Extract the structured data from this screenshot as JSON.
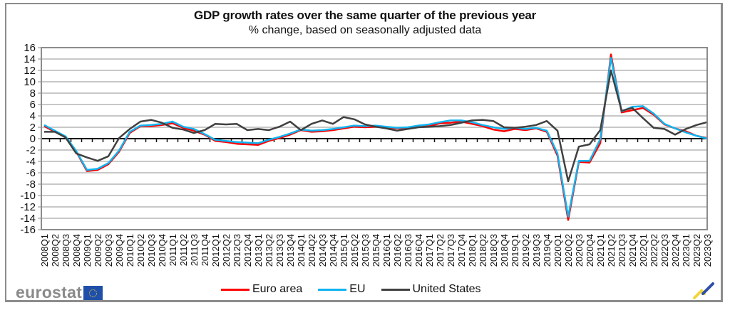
{
  "chart_data": {
    "type": "line",
    "title": "GDP growth rates over the same quarter of the previous year",
    "subtitle": "% change, based on seasonally adjusted data",
    "xlabel": "",
    "ylabel": "",
    "ylim": [
      -16,
      16
    ],
    "yticks": [
      16,
      14,
      12,
      10,
      8,
      6,
      4,
      2,
      0,
      -2,
      -4,
      -6,
      -8,
      -10,
      -12,
      -14,
      -16
    ],
    "grid": true,
    "legend_position": "bottom",
    "x": [
      "2008Q1",
      "2008Q2",
      "2008Q3",
      "2008Q4",
      "2009Q1",
      "2009Q2",
      "2009Q3",
      "2009Q4",
      "2010Q1",
      "2010Q2",
      "2010Q3",
      "2010Q4",
      "2011Q1",
      "2011Q2",
      "2011Q3",
      "2011Q4",
      "2012Q1",
      "2012Q2",
      "2012Q3",
      "2012Q4",
      "2013Q1",
      "2013Q2",
      "2013Q3",
      "2013Q4",
      "2014Q1",
      "2014Q2",
      "2014Q3",
      "2014Q4",
      "2015Q1",
      "2015Q2",
      "2015Q3",
      "2015Q4",
      "2016Q1",
      "2016Q2",
      "2016Q3",
      "2016Q4",
      "2017Q1",
      "2017Q2",
      "2017Q3",
      "2017Q4",
      "2018Q1",
      "2018Q2",
      "2018Q3",
      "2018Q4",
      "2019Q1",
      "2019Q2",
      "2019Q3",
      "2019Q4",
      "2020Q1",
      "2020Q2",
      "2020Q3",
      "2020Q4",
      "2021Q1",
      "2021Q2",
      "2021Q3",
      "2021Q4",
      "2022Q1",
      "2022Q2",
      "2022Q3",
      "2022Q4",
      "2023Q1",
      "2023Q2",
      "2023Q3"
    ],
    "series": [
      {
        "name": "Euro area",
        "color": "#ff0000",
        "values": [
          2.2,
          1.2,
          0.3,
          -2.3,
          -5.7,
          -5.5,
          -4.5,
          -2.3,
          1.0,
          2.2,
          2.2,
          2.4,
          2.7,
          1.9,
          1.4,
          0.7,
          -0.4,
          -0.6,
          -0.9,
          -1.0,
          -1.1,
          -0.4,
          0.1,
          0.7,
          1.5,
          1.2,
          1.3,
          1.5,
          1.8,
          2.1,
          2.0,
          2.1,
          2.0,
          1.8,
          1.8,
          2.1,
          2.2,
          2.7,
          2.8,
          3.0,
          2.6,
          2.2,
          1.6,
          1.3,
          1.7,
          1.5,
          1.8,
          1.2,
          -3.0,
          -14.3,
          -4.1,
          -4.2,
          -0.8,
          14.8,
          4.6,
          5.0,
          5.4,
          4.2,
          2.5,
          1.8,
          1.3,
          0.5,
          0.1
        ]
      },
      {
        "name": "EU",
        "color": "#10b4f0",
        "values": [
          2.4,
          1.4,
          0.4,
          -2.2,
          -5.5,
          -5.3,
          -4.3,
          -2.1,
          1.2,
          2.3,
          2.4,
          2.6,
          3.0,
          2.1,
          1.7,
          0.8,
          -0.2,
          -0.4,
          -0.6,
          -0.7,
          -0.8,
          -0.2,
          0.3,
          0.9,
          1.6,
          1.4,
          1.5,
          1.7,
          2.0,
          2.3,
          2.2,
          2.3,
          2.1,
          1.9,
          2.0,
          2.3,
          2.5,
          2.9,
          3.2,
          3.2,
          2.9,
          2.4,
          2.0,
          1.7,
          1.9,
          1.7,
          1.9,
          1.4,
          -2.6,
          -13.7,
          -3.9,
          -3.9,
          -0.1,
          14.2,
          4.8,
          5.6,
          5.7,
          4.4,
          2.6,
          1.8,
          1.1,
          0.5,
          0.0
        ]
      },
      {
        "name": "United States",
        "color": "#404040",
        "values": [
          1.2,
          1.2,
          0.2,
          -2.6,
          -3.3,
          -3.9,
          -3.1,
          0.1,
          1.7,
          3.0,
          3.3,
          2.8,
          1.9,
          1.6,
          1.0,
          1.5,
          2.6,
          2.5,
          2.6,
          1.5,
          1.7,
          1.5,
          2.1,
          3.0,
          1.5,
          2.6,
          3.2,
          2.6,
          3.8,
          3.4,
          2.5,
          2.1,
          1.8,
          1.4,
          1.7,
          2.0,
          2.1,
          2.2,
          2.4,
          2.8,
          3.2,
          3.3,
          3.1,
          2.0,
          1.9,
          2.1,
          2.4,
          3.1,
          1.4,
          -7.5,
          -1.4,
          -1.0,
          1.5,
          12.0,
          4.9,
          5.4,
          3.6,
          1.9,
          1.7,
          0.7,
          1.7,
          2.4,
          2.9
        ]
      }
    ]
  },
  "legend": {
    "items": [
      {
        "label": "Euro area",
        "color": "#ff0000"
      },
      {
        "label": "EU",
        "color": "#10b4f0"
      },
      {
        "label": "United States",
        "color": "#404040"
      }
    ]
  },
  "branding": {
    "logo_text": "eurostat"
  }
}
